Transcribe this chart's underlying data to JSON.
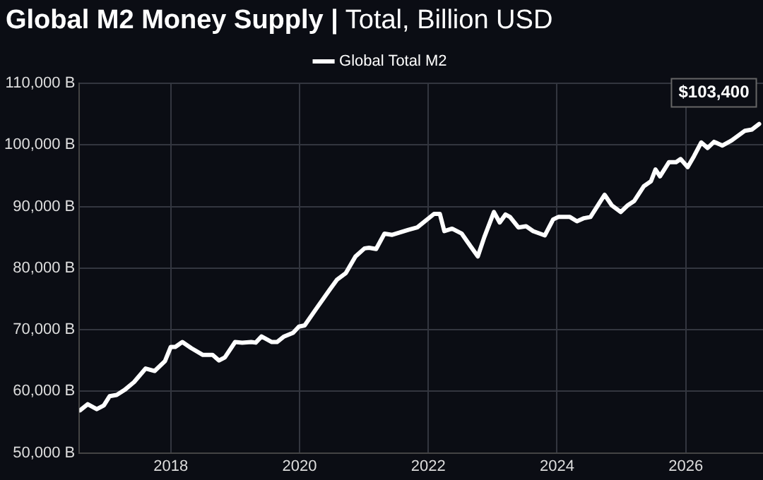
{
  "chart_data": {
    "type": "line",
    "title": "Global M2 Money Supply |",
    "subtitle": "Total, Billion USD",
    "x": [
      2016.59,
      2016.71,
      2016.85,
      2016.96,
      2017.05,
      2017.16,
      2017.28,
      2017.43,
      2017.61,
      2017.75,
      2017.91,
      2018.0,
      2018.07,
      2018.18,
      2018.32,
      2018.5,
      2018.65,
      2018.75,
      2018.84,
      2019.0,
      2019.11,
      2019.25,
      2019.32,
      2019.41,
      2019.57,
      2019.65,
      2019.76,
      2019.9,
      2019.99,
      2020.08,
      2020.26,
      2020.47,
      2020.58,
      2020.72,
      2020.87,
      2021.01,
      2021.08,
      2021.19,
      2021.32,
      2021.44,
      2021.69,
      2021.83,
      2022.09,
      2022.18,
      2022.25,
      2022.37,
      2022.52,
      2022.66,
      2022.77,
      2022.87,
      2023.02,
      2023.11,
      2023.2,
      2023.27,
      2023.4,
      2023.52,
      2023.63,
      2023.81,
      2023.94,
      2024.02,
      2024.2,
      2024.31,
      2024.42,
      2024.52,
      2024.74,
      2024.85,
      2024.99,
      2025.1,
      2025.2,
      2025.35,
      2025.46,
      2025.53,
      2025.6,
      2025.74,
      2025.85,
      2025.92,
      2026.03,
      2026.13,
      2026.24,
      2026.34,
      2026.44,
      2026.57,
      2026.71,
      2026.92,
      2027.03,
      2027.14
    ],
    "series": [
      {
        "name": "Global Total M2",
        "color": "#ffffff",
        "values": [
          56900,
          57900,
          57100,
          57700,
          59200,
          59400,
          60200,
          61500,
          63700,
          63300,
          64900,
          67200,
          67200,
          68000,
          67000,
          65900,
          65900,
          65000,
          65500,
          68000,
          67900,
          68000,
          67900,
          68900,
          68000,
          68000,
          68900,
          69500,
          70500,
          70700,
          73400,
          76500,
          78100,
          79200,
          81900,
          83200,
          83300,
          83100,
          85600,
          85400,
          86200,
          86600,
          88800,
          88800,
          86000,
          86400,
          85600,
          83500,
          81900,
          85000,
          89100,
          87400,
          88700,
          88300,
          86600,
          86800,
          86000,
          85300,
          87900,
          88300,
          88300,
          87600,
          88100,
          88300,
          91900,
          90200,
          89100,
          90200,
          90900,
          93300,
          94100,
          96000,
          94900,
          97200,
          97200,
          97700,
          96400,
          98200,
          100400,
          99500,
          100500,
          99900,
          100700,
          102300,
          102500,
          103400
        ]
      }
    ],
    "xlim": [
      2016.58,
      2027.2
    ],
    "xticks": [
      2018,
      2020,
      2022,
      2024,
      2026
    ],
    "ylim": [
      50000,
      110000
    ],
    "yticks": [
      {
        "value": 50000,
        "label": "50,000 B"
      },
      {
        "value": 60000,
        "label": "60,000 B"
      },
      {
        "value": 70000,
        "label": "70,000 B"
      },
      {
        "value": 80000,
        "label": "80,000 B"
      },
      {
        "value": 90000,
        "label": "90,000 B"
      },
      {
        "value": 100000,
        "label": "100,000 B"
      },
      {
        "value": 110000,
        "label": "110,000 B"
      }
    ],
    "annotations": [
      {
        "text": "$103,400",
        "x": 2027.14,
        "y": 103400
      }
    ],
    "grid": true,
    "legend": "top",
    "marker": "none",
    "line_style": "solid"
  }
}
